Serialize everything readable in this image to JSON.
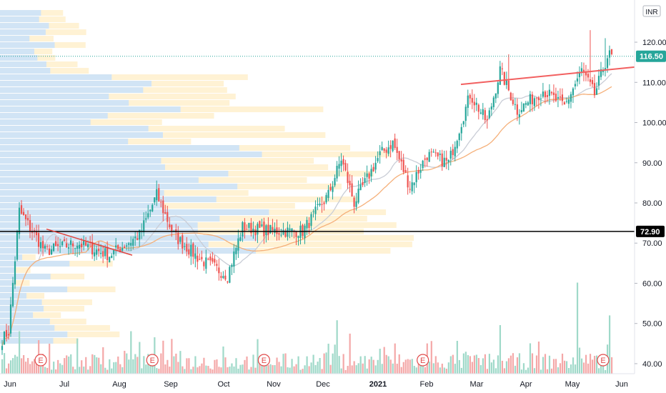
{
  "chart_data": {
    "type": "candlestick",
    "currency": "INR",
    "scale_top_label": "0",
    "y_ticks": [
      "120.00",
      "110.00",
      "100.00",
      "90.00",
      "80.00",
      "70.00",
      "60.00",
      "50.00",
      "40.00"
    ],
    "y_tick_values": [
      120,
      110,
      100,
      90,
      80,
      70,
      60,
      50,
      40
    ],
    "ylim": [
      37.5,
      130.5
    ],
    "x_tick_labels": [
      "Jun",
      "Jul",
      "Aug",
      "Sep",
      "Oct",
      "Nov",
      "Dec",
      "2021",
      "Feb",
      "Mar",
      "Apr",
      "May",
      "Jun"
    ],
    "last_price": "116.50",
    "last_price_value": 116.5,
    "level_line": "72.90",
    "level_line_value": 72.9,
    "earnings_markers": [
      "E",
      "E",
      "E",
      "E",
      "E"
    ],
    "price_anchors": [
      {
        "bar": 0,
        "close": 46
      },
      {
        "bar": 3,
        "close": 48
      },
      {
        "bar": 8,
        "close": 78
      },
      {
        "bar": 20,
        "close": 68
      },
      {
        "bar": 35,
        "close": 70
      },
      {
        "bar": 50,
        "close": 67
      },
      {
        "bar": 64,
        "close": 72
      },
      {
        "bar": 72,
        "close": 82
      },
      {
        "bar": 80,
        "close": 72
      },
      {
        "bar": 92,
        "close": 66
      },
      {
        "bar": 105,
        "close": 62
      },
      {
        "bar": 112,
        "close": 74
      },
      {
        "bar": 125,
        "close": 73
      },
      {
        "bar": 140,
        "close": 73
      },
      {
        "bar": 152,
        "close": 82
      },
      {
        "bar": 158,
        "close": 91
      },
      {
        "bar": 164,
        "close": 80
      },
      {
        "bar": 176,
        "close": 92
      },
      {
        "bar": 182,
        "close": 95
      },
      {
        "bar": 190,
        "close": 84
      },
      {
        "bar": 198,
        "close": 92
      },
      {
        "bar": 208,
        "close": 90
      },
      {
        "bar": 218,
        "close": 107
      },
      {
        "bar": 226,
        "close": 100
      },
      {
        "bar": 232,
        "close": 113
      },
      {
        "bar": 240,
        "close": 103
      },
      {
        "bar": 252,
        "close": 108
      },
      {
        "bar": 262,
        "close": 104
      },
      {
        "bar": 270,
        "close": 113
      },
      {
        "bar": 276,
        "close": 107
      },
      {
        "bar": 282,
        "close": 116.5
      }
    ],
    "volume_spikes": [
      {
        "bar": 8,
        "value": 0.35
      },
      {
        "bar": 60,
        "value": 0.35
      },
      {
        "bar": 71,
        "value": 0.3
      },
      {
        "bar": 156,
        "value": 0.44
      },
      {
        "bar": 162,
        "value": 0.33
      },
      {
        "bar": 232,
        "value": 0.4
      },
      {
        "bar": 268,
        "value": 0.75
      },
      {
        "bar": 283,
        "value": 0.48
      }
    ]
  }
}
